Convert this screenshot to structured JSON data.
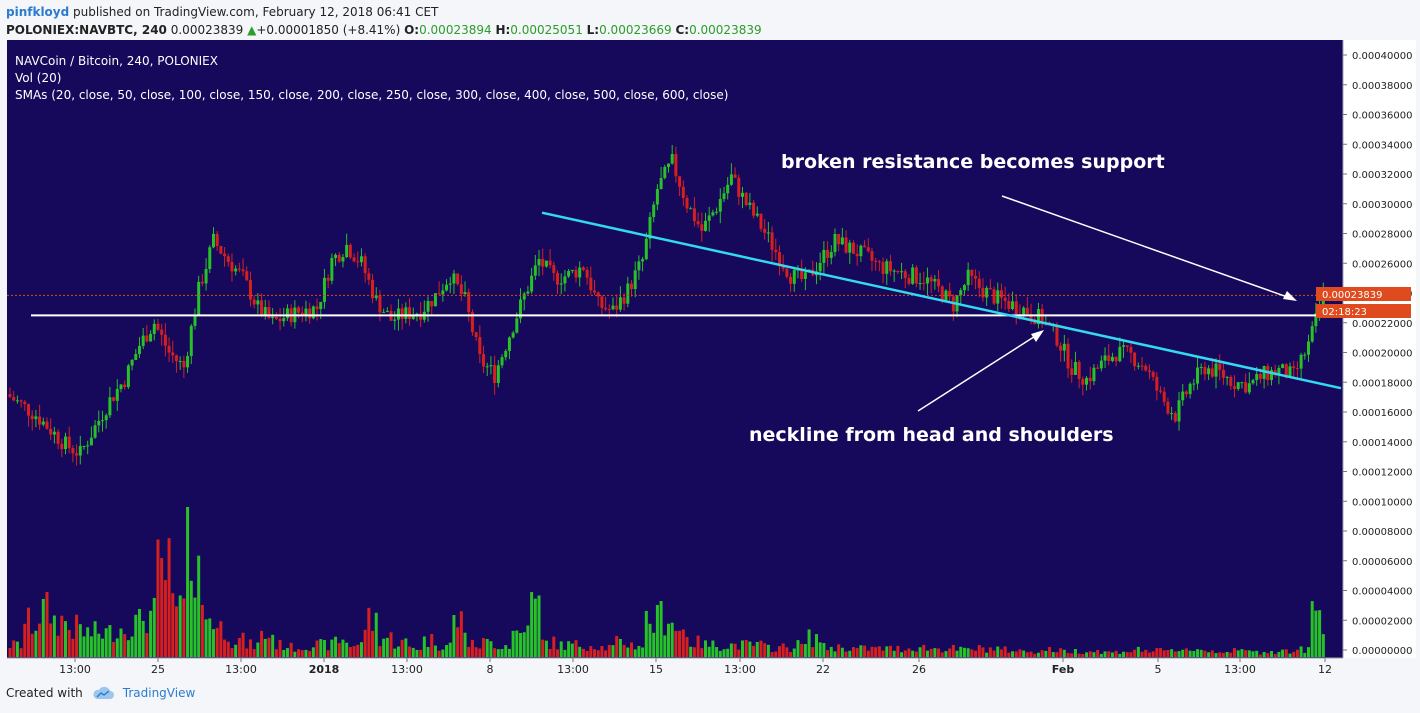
{
  "header": {
    "author": "pinfkloyd",
    "published_text": "published on TradingView.com, February 12, 2018 06:41 CET",
    "symbol": "POLONIEX:NAVBTC, 240",
    "last_price": "0.00023839",
    "change": "+0.00001850 (+8.41%)",
    "open_label": "O:",
    "open": "0.00023894",
    "high_label": "H:",
    "high": "0.00025051",
    "low_label": "L:",
    "low": "0.00023669",
    "close_label": "C:",
    "close": "0.00023839"
  },
  "legend": {
    "title": "NAVCoin / Bitcoin, 240, POLONIEX",
    "volume": "Vol (20)",
    "smas": "SMAs (20, close, 50, close, 100, close, 150, close, 200, close, 250, close, 300, close, 400, close, 500, close, 600, close)"
  },
  "annotations": {
    "resistance": "broken resistance becomes support",
    "neckline": "neckline from head and shoulders"
  },
  "price_badge": "0.00023839",
  "countdown_badge": "02:18:23",
  "footer": {
    "created_with": "Created with",
    "brand": "TradingView"
  },
  "colors": {
    "background": "#16085b",
    "up": "#27c227",
    "down": "#d62020",
    "neckline": "#33d9f0",
    "support": "#ffffff",
    "price_badge": "#e04a1f"
  },
  "chart_data": {
    "type": "candlestick",
    "title": "NAVCoin / Bitcoin, 240, POLONIEX",
    "interval": "240",
    "y_axis": {
      "ticks": [
        "0.00040000",
        "0.00038000",
        "0.00036000",
        "0.00034000",
        "0.00032000",
        "0.00030000",
        "0.00028000",
        "0.00026000",
        "0.00024000",
        "0.00022000",
        "0.00020000",
        "0.00018000",
        "0.00016000",
        "0.00014000",
        "0.00012000",
        "0.00010000",
        "0.00008000",
        "0.00006000",
        "0.00004000",
        "0.00002000",
        "0.00000000"
      ],
      "range": [
        0,
        0.0004
      ]
    },
    "x_axis": {
      "ticks": [
        "13:00",
        "25",
        "13:00",
        "2018",
        "13:00",
        "8",
        "13:00",
        "15",
        "13:00",
        "22",
        "26",
        "Feb",
        "5",
        "13:00",
        "12"
      ]
    },
    "price_path": {
      "values": [
        0.000172,
        0.000165,
        0.000158,
        0.000148,
        0.000138,
        0.000132,
        0.00015,
        0.000168,
        0.000182,
        0.000205,
        0.00022,
        0.0002,
        0.00019,
        0.000242,
        0.000275,
        0.000262,
        0.00025,
        0.00023,
        0.00022,
        0.000225,
        0.000228,
        0.00023,
        0.000262,
        0.000272,
        0.00026,
        0.000235,
        0.000222,
        0.000226,
        0.000228,
        0.000238,
        0.000252,
        0.000235,
        0.000195,
        0.000185,
        0.000212,
        0.000238,
        0.000262,
        0.00025,
        0.000252,
        0.000258,
        0.000232,
        0.000228,
        0.000242,
        0.000262,
        0.00031,
        0.000328,
        0.0003,
        0.000282,
        0.000298,
        0.000318,
        0.0003,
        0.000285,
        0.000268,
        0.000252,
        0.000248,
        0.000262,
        0.000275,
        0.00027,
        0.000265,
        0.000258,
        0.000255,
        0.000252,
        0.00025,
        0.000242,
        0.000232,
        0.00025,
        0.000242,
        0.000236,
        0.000232,
        0.000228,
        0.000222,
        0.00021,
        0.00019,
        0.000182,
        0.000192,
        0.0002,
        0.000198,
        0.00019,
        0.00017,
        0.000158,
        0.000178,
        0.00019,
        0.000186,
        0.00018,
        0.000178,
        0.000185,
        0.000188,
        0.000184,
        0.000205,
        0.000238
      ],
      "volume_level": [
        0.1,
        0.28,
        0.38,
        0.3,
        0.24,
        0.2,
        0.2,
        0.24,
        0.28,
        0.35,
        0.7,
        0.4,
        0.95,
        0.35,
        0.24,
        0.14,
        0.1,
        0.18,
        0.1,
        0.08,
        0.1,
        0.1,
        0.14,
        0.1,
        0.3,
        0.16,
        0.12,
        0.08,
        0.14,
        0.1,
        0.3,
        0.1,
        0.12,
        0.1,
        0.2,
        0.42,
        0.12,
        0.1,
        0.1,
        0.1,
        0.08,
        0.12,
        0.1,
        0.3,
        0.35,
        0.22,
        0.12,
        0.1,
        0.1,
        0.1,
        0.1,
        0.08,
        0.08,
        0.1,
        0.16,
        0.08,
        0.08,
        0.07,
        0.07,
        0.07,
        0.07,
        0.08,
        0.07,
        0.07,
        0.06,
        0.07,
        0.07,
        0.06,
        0.05,
        0.05,
        0.06,
        0.05,
        0.05,
        0.05,
        0.04,
        0.05,
        0.06,
        0.05,
        0.05,
        0.07,
        0.06,
        0.05,
        0.05,
        0.05,
        0.04,
        0.05,
        0.05,
        0.06,
        0.38,
        0.28
      ]
    },
    "support_line_price": 0.000225,
    "current_price_line": 0.00023839,
    "neckline": {
      "from_price": 0.000294,
      "to_price": 0.000176
    }
  }
}
